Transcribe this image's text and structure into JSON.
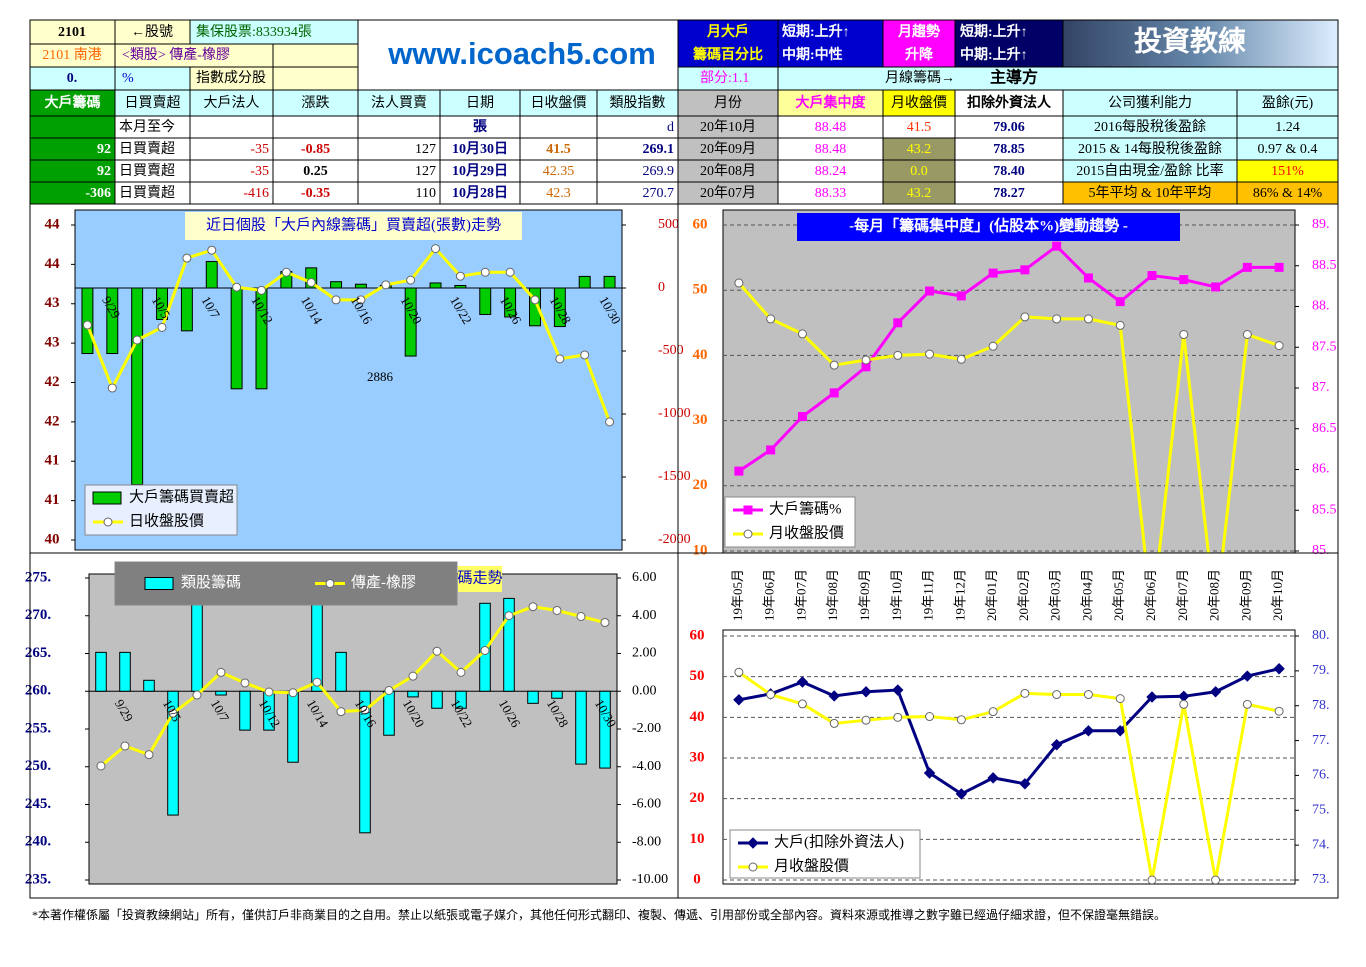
{
  "header": {
    "stock_code": "2101",
    "code_label": "←股號",
    "custody": "集保股票:833934張",
    "name": "2101 南港",
    "sector": "<類股> 傳產-橡膠",
    "pct": "0.",
    "pct_unit": "%",
    "index_member": "指數成分股",
    "site": "www.icoach5.com",
    "big_holder_title": "月大戶",
    "big_holder_sub": "籌碼百分比",
    "short1": "短期:上升↑",
    "mid1": "中期:中性",
    "part": "部分:1.1",
    "trend_title": "月趨勢",
    "trend_sub": "升降",
    "short2": "短期:上升↑",
    "mid2": "中期:上升↑",
    "monthly_chip": "月線籌碼→",
    "dominant": "主導方",
    "brand": "投資教練"
  },
  "table": {
    "columns": [
      "大戶籌碼",
      "日買賣超",
      "大戶法人",
      "漲跌",
      "法人買賣",
      "日期",
      "日收盤價",
      "類股指數",
      "月份",
      "大戶集中度",
      "月收盤價",
      "扣除外資法人",
      "公司獲利能力",
      "盈餘(元)"
    ],
    "rows": [
      [
        null,
        "本月至今",
        null,
        null,
        null,
        "張",
        null,
        "d",
        "20年10月",
        "88.48",
        "41.5",
        "79.06",
        "2016每股稅後盈餘",
        "1.24"
      ],
      [
        "92",
        "日買賣超",
        "-35",
        "-0.85",
        "127",
        "10月30日",
        "41.5",
        "269.1",
        "20年09月",
        "88.48",
        "43.2",
        "78.85",
        "2015 & 14每股稅後盈餘",
        "0.97 & 0.4"
      ],
      [
        "92",
        "日買賣超",
        "-35",
        "0.25",
        "127",
        "10月29日",
        "42.35",
        "269.9",
        "20年08月",
        "88.24",
        "0.0",
        "78.40",
        "2015自由現金/盈餘 比率",
        "151%"
      ],
      [
        "-306",
        "日買賣超",
        "-416",
        "-0.35",
        "110",
        "10月28日",
        "42.3",
        "270.7",
        "20年07月",
        "88.33",
        "43.2",
        "78.27",
        "5年平均 & 10年平均",
        "86% & 14%"
      ]
    ]
  },
  "chart_data": [
    {
      "type": "bar",
      "title": "近日個股「大戶內線籌碼」買賣超(張數)走勢",
      "annotations": [
        "2886"
      ],
      "categories": [
        null,
        "9/29",
        null,
        "10/5",
        null,
        "10/7",
        null,
        "10/12",
        null,
        "10/14",
        null,
        "10/16",
        null,
        "10/20",
        null,
        "10/22",
        null,
        "10/26",
        null,
        "10/28",
        null,
        "10/30"
      ],
      "ylim": [
        40,
        44
      ],
      "yticks": [
        {
          "value": 44,
          "label": "44"
        },
        {
          "value": 43.5,
          "label": "44"
        },
        {
          "value": 43,
          "label": "43"
        },
        {
          "value": 42.5,
          "label": "43"
        },
        {
          "value": 42,
          "label": "42"
        },
        {
          "value": 41.5,
          "label": "42"
        },
        {
          "value": 41,
          "label": "41"
        },
        {
          "value": 40.5,
          "label": "41"
        },
        {
          "value": 40,
          "label": "40"
        }
      ],
      "y2lim": [
        -2000,
        500
      ],
      "y2ticks": [
        500,
        0,
        -500,
        -1000,
        -1500,
        -2000
      ],
      "grid": false,
      "series": [
        {
          "name": "大戶籌碼買賣超",
          "kind": "bar",
          "axis": "y2",
          "color": "#00cc00",
          "values": [
            -520,
            -520,
            -1560,
            -250,
            -340,
            210,
            -800,
            -800,
            130,
            160,
            50,
            30,
            20,
            -540,
            40,
            20,
            -210,
            -230,
            -300,
            -306,
            92,
            92
          ]
        },
        {
          "name": "日收盤股價",
          "kind": "line",
          "color": "#ffff00",
          "marker": "circle",
          "values": [
            42.73,
            41.93,
            42.54,
            42.7,
            43.58,
            43.68,
            43.21,
            43.17,
            43.4,
            43.27,
            43.05,
            43.05,
            43.24,
            43.3,
            43.7,
            43.35,
            43.4,
            43.4,
            43.05,
            42.3,
            42.35,
            41.5
          ]
        }
      ]
    },
    {
      "type": "line",
      "title": "-每月「籌碼集中度」(佔股本%)變動趨勢 -",
      "categories": [
        "19年05月",
        "19年06月",
        "19年07月",
        "19年08月",
        "19年09月",
        "19年10月",
        "19年11月",
        "19年12月",
        "20年01月",
        "20年02月",
        "20年03月",
        "20年04月",
        "20年05月",
        "20年06月",
        "20年07月",
        "20年08月",
        "20年09月",
        "20年10月"
      ],
      "ylim": [
        10,
        60
      ],
      "yticks": [
        60,
        50,
        40,
        30,
        20,
        10
      ],
      "y2lim": [
        85,
        89
      ],
      "y2ticks": [
        {
          "value": 89,
          "label": "89."
        },
        {
          "value": 88.5,
          "label": "88.5"
        },
        {
          "value": 88,
          "label": "88."
        },
        {
          "value": 87.5,
          "label": "87.5"
        },
        {
          "value": 87,
          "label": "87."
        },
        {
          "value": 86.5,
          "label": "86.5"
        },
        {
          "value": 86,
          "label": "86."
        },
        {
          "value": 85.5,
          "label": "85.5"
        },
        {
          "value": 85,
          "label": "85."
        }
      ],
      "grid": true,
      "series": [
        {
          "name": "大戶籌碼%",
          "kind": "line",
          "axis": "y2",
          "color": "#ff00ff",
          "marker": "square",
          "values": [
            85.98,
            86.24,
            86.65,
            86.94,
            87.26,
            87.8,
            88.19,
            88.13,
            88.41,
            88.45,
            88.74,
            88.35,
            88.06,
            88.38,
            88.33,
            88.24,
            88.48,
            88.48
          ]
        },
        {
          "name": "月收盤股價",
          "kind": "line",
          "color": "#ffff00",
          "marker": "circle",
          "values": [
            51.1,
            45.6,
            43.3,
            38.5,
            39.3,
            40,
            40.2,
            39.4,
            41.4,
            45.9,
            45.6,
            45.6,
            44.6,
            0,
            43.2,
            0,
            43.2,
            41.5
          ]
        }
      ]
    },
    {
      "type": "bar",
      "title": "碼走勢",
      "categories": [
        null,
        "9/29",
        null,
        "10/5",
        null,
        "10/7",
        null,
        "10/12",
        null,
        "10/14",
        null,
        "10/16",
        null,
        "10/20",
        null,
        "10/22",
        null,
        "10/26",
        null,
        "10/28",
        null,
        "10/30"
      ],
      "ylim": [
        235,
        275
      ],
      "yticks": [
        {
          "value": 275,
          "label": "275."
        },
        {
          "value": 270,
          "label": "270."
        },
        {
          "value": 265,
          "label": "265."
        },
        {
          "value": 260,
          "label": "260."
        },
        {
          "value": 255,
          "label": "255."
        },
        {
          "value": 250,
          "label": "250."
        },
        {
          "value": 245,
          "label": "245."
        },
        {
          "value": 240,
          "label": "240."
        },
        {
          "value": 235,
          "label": "235."
        }
      ],
      "y2lim": [
        -10,
        6
      ],
      "y2ticks": [
        {
          "value": 6,
          "label": "6.00"
        },
        {
          "value": 4,
          "label": "4.00"
        },
        {
          "value": 2,
          "label": "2.00"
        },
        {
          "value": 0,
          "label": "0.00"
        },
        {
          "value": -2,
          "label": "-2.00"
        },
        {
          "value": -4,
          "label": "-4.00"
        },
        {
          "value": -6,
          "label": "-6.00"
        },
        {
          "value": -8,
          "label": "-8.00"
        },
        {
          "value": -10,
          "label": "-10.00"
        }
      ],
      "grid": false,
      "series": [
        {
          "name": "類股籌碼",
          "kind": "bar",
          "axis": "y2",
          "color": "#00ffff",
          "values": [
            2.06,
            2.06,
            0.58,
            -6.56,
            6.5,
            -0.2,
            -2.06,
            -2.06,
            -3.76,
            6.5,
            2.06,
            -7.5,
            -2.33,
            -0.3,
            -0.9,
            -0.9,
            4.66,
            4.92,
            -0.64,
            -0.37,
            -3.86,
            -4.07
          ]
        },
        {
          "name": "傳產-橡膠",
          "kind": "line",
          "color": "#ffff00",
          "marker": "circle",
          "values": [
            250.1,
            252.75,
            251.6,
            257.1,
            259.5,
            262.5,
            261.1,
            259.9,
            259.8,
            261.2,
            257.3,
            257.5,
            260.1,
            262,
            265.3,
            262.5,
            265.4,
            270,
            271.2,
            270.7,
            269.9,
            269.1
          ]
        }
      ]
    },
    {
      "type": "line",
      "ylim": [
        0,
        60
      ],
      "yticks": [
        60,
        50,
        40,
        30,
        20,
        10,
        0
      ],
      "y2lim": [
        73,
        80
      ],
      "y2ticks": [
        {
          "value": 80,
          "label": "80."
        },
        {
          "value": 79,
          "label": "79."
        },
        {
          "value": 78,
          "label": "78."
        },
        {
          "value": 77,
          "label": "77."
        },
        {
          "value": 76,
          "label": "76."
        },
        {
          "value": 75,
          "label": "75."
        },
        {
          "value": 74,
          "label": "74."
        },
        {
          "value": 73,
          "label": "73."
        }
      ],
      "grid": true,
      "series": [
        {
          "name": "大戶(扣除外資法人)",
          "kind": "line",
          "axis": "y2",
          "color": "#000080",
          "marker": "diamond",
          "values": [
            78.17,
            78.34,
            78.68,
            78.28,
            78.4,
            78.45,
            76.07,
            75.47,
            75.93,
            75.76,
            76.88,
            77.28,
            77.28,
            78.25,
            78.27,
            78.4,
            78.85,
            79.06
          ]
        },
        {
          "name": "月收盤股價",
          "kind": "line",
          "color": "#ffff00",
          "marker": "circle",
          "values": [
            51.1,
            45.6,
            43.3,
            38.5,
            39.3,
            40,
            40.2,
            39.4,
            41.4,
            45.9,
            45.6,
            45.6,
            44.6,
            0,
            43.2,
            0,
            43.2,
            41.5
          ]
        }
      ]
    }
  ],
  "footer": "*本著作權係屬「投資教練網站」所有，僅供訂戶非商業目的之自用。禁止以紙張或電子媒介，其他任何形式翻印、複製、傳遞、引用部份或全部內容。資料來源或推導之數字雖已經過仔細求證，但不保證毫無錯誤。"
}
